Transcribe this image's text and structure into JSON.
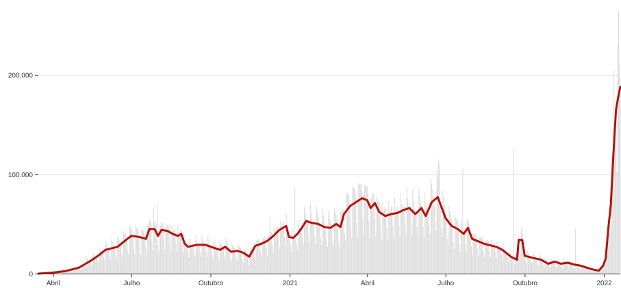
{
  "chart_data": {
    "type": "bar",
    "colors": {
      "bars": "#dcdcdc",
      "line": "#b5120e",
      "axis": "#333333",
      "grid": "#e2e2e2"
    },
    "x_axis": {
      "type": "date",
      "start": "2020-03-15",
      "end": "2022-01-20",
      "ticks": [
        {
          "date": "2020-04-01",
          "label": "Abril"
        },
        {
          "date": "2020-07-01",
          "label": "Julho"
        },
        {
          "date": "2020-10-01",
          "label": "Outubro"
        },
        {
          "date": "2021-01-01",
          "label": "2021"
        },
        {
          "date": "2021-04-01",
          "label": "Abril"
        },
        {
          "date": "2021-07-01",
          "label": "Julho"
        },
        {
          "date": "2021-10-01",
          "label": "Outubro"
        },
        {
          "date": "2022-01-01",
          "label": "2022"
        }
      ]
    },
    "y_axis": {
      "ylim": [
        0,
        270000
      ],
      "ticks": [
        {
          "value": 0,
          "label": "0"
        },
        {
          "value": 100000,
          "label": "100.000"
        },
        {
          "value": 200000,
          "label": "200.000"
        }
      ]
    },
    "series": [
      {
        "kind": "moving-average",
        "points": [
          [
            "2020-03-15",
            0
          ],
          [
            "2020-04-01",
            1000
          ],
          [
            "2020-04-15",
            2500
          ],
          [
            "2020-05-01",
            6000
          ],
          [
            "2020-05-15",
            13000
          ],
          [
            "2020-05-25",
            19000
          ],
          [
            "2020-06-01",
            24000
          ],
          [
            "2020-06-15",
            27000
          ],
          [
            "2020-06-25",
            34000
          ],
          [
            "2020-07-01",
            38000
          ],
          [
            "2020-07-10",
            37000
          ],
          [
            "2020-07-18",
            35000
          ],
          [
            "2020-07-22",
            45000
          ],
          [
            "2020-07-28",
            45000
          ],
          [
            "2020-08-01",
            38000
          ],
          [
            "2020-08-05",
            44000
          ],
          [
            "2020-08-12",
            43000
          ],
          [
            "2020-08-18",
            40000
          ],
          [
            "2020-08-24",
            38000
          ],
          [
            "2020-08-28",
            40000
          ],
          [
            "2020-09-01",
            30000
          ],
          [
            "2020-09-05",
            27000
          ],
          [
            "2020-09-15",
            29000
          ],
          [
            "2020-09-25",
            29000
          ],
          [
            "2020-10-05",
            26000
          ],
          [
            "2020-10-12",
            24000
          ],
          [
            "2020-10-18",
            27000
          ],
          [
            "2020-10-25",
            22000
          ],
          [
            "2020-11-01",
            23000
          ],
          [
            "2020-11-08",
            21000
          ],
          [
            "2020-11-15",
            17000
          ],
          [
            "2020-11-22",
            28000
          ],
          [
            "2020-11-29",
            30000
          ],
          [
            "2020-12-06",
            33000
          ],
          [
            "2020-12-13",
            38000
          ],
          [
            "2020-12-20",
            44000
          ],
          [
            "2020-12-28",
            48000
          ],
          [
            "2020-12-31",
            37000
          ],
          [
            "2021-01-05",
            36000
          ],
          [
            "2021-01-10",
            40000
          ],
          [
            "2021-01-15",
            46000
          ],
          [
            "2021-01-20",
            53000
          ],
          [
            "2021-01-27",
            51000
          ],
          [
            "2021-02-03",
            50000
          ],
          [
            "2021-02-10",
            47000
          ],
          [
            "2021-02-17",
            46000
          ],
          [
            "2021-02-24",
            50000
          ],
          [
            "2021-03-01",
            47000
          ],
          [
            "2021-03-05",
            60000
          ],
          [
            "2021-03-12",
            68000
          ],
          [
            "2021-03-19",
            72000
          ],
          [
            "2021-03-26",
            76000
          ],
          [
            "2021-04-01",
            74000
          ],
          [
            "2021-04-05",
            66000
          ],
          [
            "2021-04-10",
            71000
          ],
          [
            "2021-04-15",
            62000
          ],
          [
            "2021-04-22",
            58000
          ],
          [
            "2021-04-29",
            60000
          ],
          [
            "2021-05-06",
            61000
          ],
          [
            "2021-05-13",
            64000
          ],
          [
            "2021-05-20",
            66000
          ],
          [
            "2021-05-27",
            60000
          ],
          [
            "2021-06-03",
            66000
          ],
          [
            "2021-06-08",
            58000
          ],
          [
            "2021-06-15",
            72000
          ],
          [
            "2021-06-22",
            77000
          ],
          [
            "2021-06-25",
            70000
          ],
          [
            "2021-07-01",
            56000
          ],
          [
            "2021-07-08",
            48000
          ],
          [
            "2021-07-15",
            45000
          ],
          [
            "2021-07-22",
            40000
          ],
          [
            "2021-07-27",
            46000
          ],
          [
            "2021-08-01",
            35000
          ],
          [
            "2021-08-15",
            30000
          ],
          [
            "2021-08-29",
            27000
          ],
          [
            "2021-09-05",
            24000
          ],
          [
            "2021-09-15",
            17000
          ],
          [
            "2021-09-22",
            14000
          ],
          [
            "2021-09-24",
            34000
          ],
          [
            "2021-09-28",
            34000
          ],
          [
            "2021-10-01",
            18000
          ],
          [
            "2021-10-10",
            16000
          ],
          [
            "2021-10-20",
            14000
          ],
          [
            "2021-10-28",
            10000
          ],
          [
            "2021-11-05",
            12000
          ],
          [
            "2021-11-12",
            10000
          ],
          [
            "2021-11-20",
            11000
          ],
          [
            "2021-11-28",
            9000
          ],
          [
            "2021-12-05",
            8000
          ],
          [
            "2021-12-12",
            6000
          ],
          [
            "2021-12-20",
            4000
          ],
          [
            "2021-12-26",
            3000
          ],
          [
            "2021-12-31",
            8000
          ],
          [
            "2022-01-03",
            15000
          ],
          [
            "2022-01-06",
            45000
          ],
          [
            "2022-01-09",
            70000
          ],
          [
            "2022-01-12",
            120000
          ],
          [
            "2022-01-15",
            165000
          ],
          [
            "2022-01-18",
            180000
          ],
          [
            "2022-01-20",
            188000
          ]
        ]
      }
    ],
    "bars": {
      "spikes": [
        [
          "2020-07-27",
          66000
        ],
        [
          "2020-07-31",
          70000
        ],
        [
          "2020-12-09",
          58000
        ],
        [
          "2021-01-07",
          86000
        ],
        [
          "2021-03-25",
          90000
        ],
        [
          "2021-06-23",
          115000
        ],
        [
          "2021-06-24",
          110000
        ],
        [
          "2021-07-21",
          106000
        ],
        [
          "2021-09-18",
          125000
        ],
        [
          "2021-11-29",
          45000
        ],
        [
          "2022-01-12",
          205000
        ],
        [
          "2022-01-18",
          265000
        ],
        [
          "2022-01-19",
          210000
        ]
      ]
    }
  }
}
